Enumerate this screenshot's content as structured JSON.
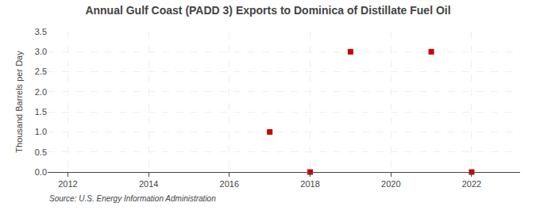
{
  "chart_data": {
    "type": "scatter",
    "title": "Annual Gulf Coast (PADD 3) Exports to Dominica of Distillate Fuel Oil",
    "ylabel": "Thousand Barrels per Day",
    "annotation": "Source: U.S. Energy Information Administration",
    "x": [
      2017,
      2018,
      2019,
      2021,
      2022
    ],
    "values": [
      1.0,
      0.0,
      3.0,
      3.0,
      0.0
    ],
    "color": "#cc0000",
    "marker": "square",
    "xlim": [
      2011.5,
      2023.2
    ],
    "xticks": [
      2012,
      2014,
      2016,
      2018,
      2020,
      2022
    ],
    "ylim": [
      0,
      3.5
    ],
    "yticks": [
      {
        "value": 0.0,
        "label": "0.0"
      },
      0.5,
      {
        "value": 1.0,
        "label": "1.0"
      },
      1.5,
      {
        "value": 2.0,
        "label": "2.0"
      },
      2.5,
      {
        "value": 3.0,
        "label": "3.0"
      },
      3.5
    ],
    "grid": true
  }
}
